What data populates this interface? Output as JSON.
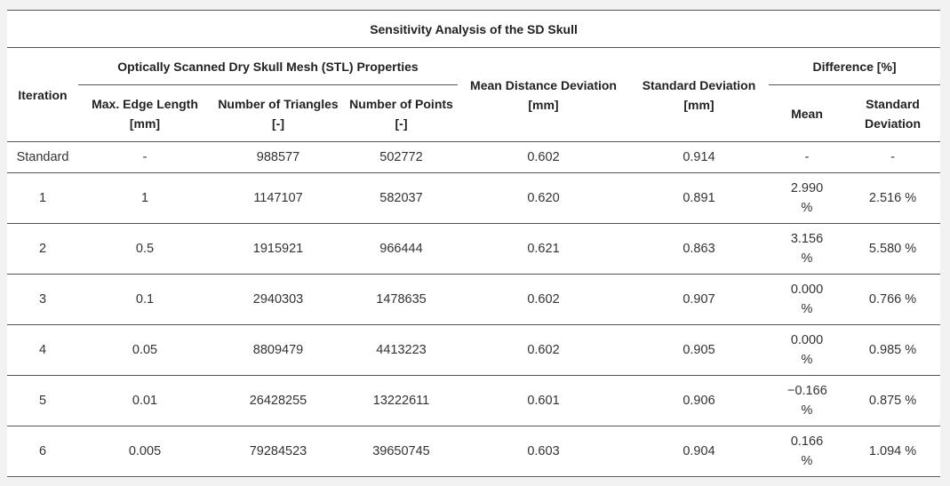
{
  "table": {
    "title": "Sensitivity Analysis of the SD Skull",
    "headers": {
      "iteration": "Iteration",
      "group_stl": "Optically Scanned Dry Skull Mesh (STL) Properties",
      "max_edge": "Max. Edge Length [mm]",
      "triangles": "Number of Triangles [-]",
      "points": "Number of Points [-]",
      "mean_dist": "Mean Distance Deviation [mm]",
      "std_dev": "Standard Deviation [mm]",
      "group_diff": "Difference [%]",
      "diff_mean": "Mean",
      "diff_std": "Standard Deviation"
    },
    "rows": [
      {
        "iteration": "Standard",
        "max_edge": "-",
        "triangles": "988577",
        "points": "502772",
        "mean_dist": "0.602",
        "std_dev": "0.914",
        "diff_mean": "-",
        "diff_std": "-"
      },
      {
        "iteration": "1",
        "max_edge": "1",
        "triangles": "1147107",
        "points": "582037",
        "mean_dist": "0.620",
        "std_dev": "0.891",
        "diff_mean": "2.990 %",
        "diff_std": "2.516 %"
      },
      {
        "iteration": "2",
        "max_edge": "0.5",
        "triangles": "1915921",
        "points": "966444",
        "mean_dist": "0.621",
        "std_dev": "0.863",
        "diff_mean": "3.156 %",
        "diff_std": "5.580 %"
      },
      {
        "iteration": "3",
        "max_edge": "0.1",
        "triangles": "2940303",
        "points": "1478635",
        "mean_dist": "0.602",
        "std_dev": "0.907",
        "diff_mean": "0.000 %",
        "diff_std": "0.766 %"
      },
      {
        "iteration": "4",
        "max_edge": "0.05",
        "triangles": "8809479",
        "points": "4413223",
        "mean_dist": "0.602",
        "std_dev": "0.905",
        "diff_mean": "0.000 %",
        "diff_std": "0.985 %"
      },
      {
        "iteration": "5",
        "max_edge": "0.01",
        "triangles": "26428255",
        "points": "13222611",
        "mean_dist": "0.601",
        "std_dev": "0.906",
        "diff_mean": "−0.166 %",
        "diff_std": "0.875 %"
      },
      {
        "iteration": "6",
        "max_edge": "0.005",
        "triangles": "79284523",
        "points": "39650745",
        "mean_dist": "0.603",
        "std_dev": "0.904",
        "diff_mean": "0.166 %",
        "diff_std": "1.094 %"
      }
    ]
  }
}
